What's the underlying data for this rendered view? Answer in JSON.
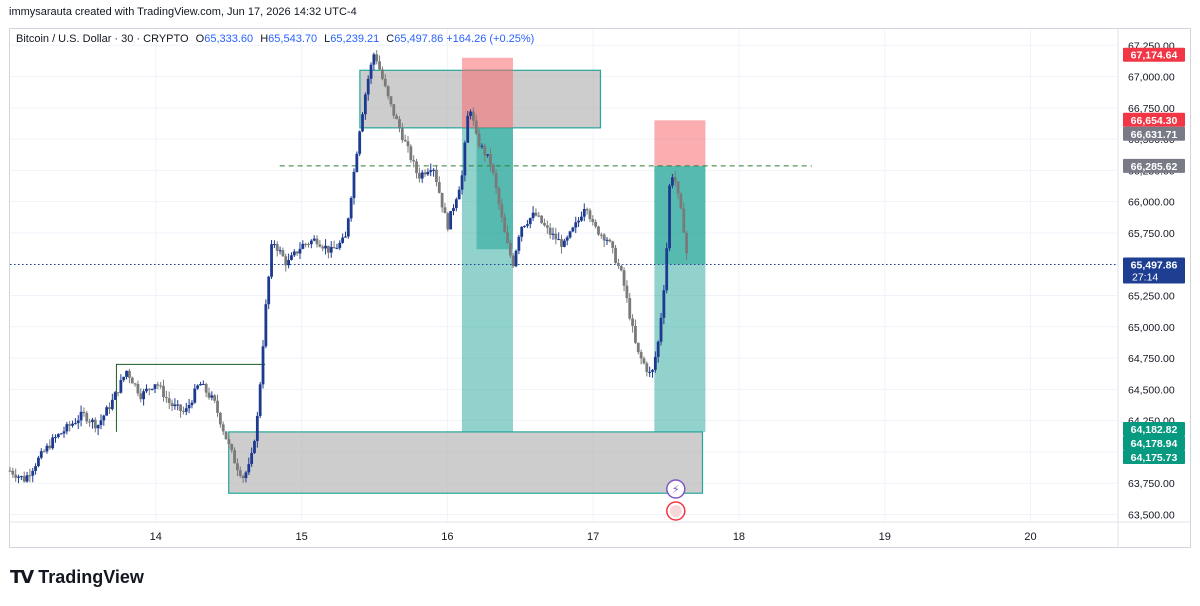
{
  "caption": "immysarauta created with TradingView.com, Jun 17, 2026 14:32 UTC-4",
  "symbol": {
    "name": "Bitcoin / U.S. Dollar · 30 · CRYPTO",
    "o_label": "O",
    "o": "65,333.60",
    "h_label": "H",
    "h": "65,543.70",
    "l_label": "L",
    "l": "65,239.21",
    "c_label": "C",
    "c": "65,497.86",
    "change": "+164.26 (+0.25%)"
  },
  "brand": "TradingView",
  "colors": {
    "candle": "#1c3a8f",
    "grey_zone": "#b2b2b2",
    "teal_border": "#26a69a",
    "green_zone": "#26a69a",
    "red_zone": "#f8696f",
    "current_price": "#1e3f91",
    "red_label": "#f23645",
    "grey_label": "#787b86",
    "green_label": "#089981"
  },
  "chart_data": {
    "type": "candlestick",
    "y_ticks": [
      "67,250.00",
      "67,000.00",
      "66,750.00",
      "66,500.00",
      "66,250.00",
      "66,000.00",
      "65,750.00",
      "65,500.00",
      "65,250.00",
      "65,000.00",
      "64,750.00",
      "64,500.00",
      "64,250.00",
      "64,000.00",
      "63,750.00",
      "63,500.00"
    ],
    "y_tick_values": [
      67250,
      67000,
      66750,
      66500,
      66250,
      66000,
      65750,
      65500,
      65250,
      65000,
      64750,
      64500,
      64250,
      64000,
      63750,
      63500
    ],
    "ylim": [
      63440,
      67380
    ],
    "x_ticks": [
      "14",
      "15",
      "16",
      "17",
      "18",
      "19",
      "20"
    ],
    "x_tick_values": [
      14,
      15,
      16,
      17,
      18,
      19,
      20
    ],
    "xlim": [
      13.0,
      20.6
    ],
    "candle_path": [
      [
        13.0,
        63850
      ],
      [
        13.1,
        63780
      ],
      [
        13.2,
        63950
      ],
      [
        13.3,
        64100
      ],
      [
        13.4,
        64200
      ],
      [
        13.5,
        64300
      ],
      [
        13.6,
        64210
      ],
      [
        13.7,
        64400
      ],
      [
        13.8,
        64650
      ],
      [
        13.9,
        64450
      ],
      [
        14.0,
        64560
      ],
      [
        14.1,
        64380
      ],
      [
        14.2,
        64310
      ],
      [
        14.3,
        64550
      ],
      [
        14.4,
        64400
      ],
      [
        14.5,
        64050
      ],
      [
        14.55,
        63900
      ],
      [
        14.6,
        63800
      ],
      [
        14.65,
        63900
      ],
      [
        14.7,
        64300
      ],
      [
        14.75,
        65100
      ],
      [
        14.8,
        65700
      ],
      [
        14.9,
        65500
      ],
      [
        15.0,
        65650
      ],
      [
        15.1,
        65700
      ],
      [
        15.2,
        65600
      ],
      [
        15.3,
        65700
      ],
      [
        15.4,
        66600
      ],
      [
        15.45,
        66950
      ],
      [
        15.5,
        67200
      ],
      [
        15.6,
        66800
      ],
      [
        15.7,
        66500
      ],
      [
        15.8,
        66200
      ],
      [
        15.9,
        66300
      ],
      [
        16.0,
        65800
      ],
      [
        16.1,
        66200
      ],
      [
        16.15,
        66800
      ],
      [
        16.2,
        66500
      ],
      [
        16.3,
        66300
      ],
      [
        16.4,
        65700
      ],
      [
        16.45,
        65500
      ],
      [
        16.5,
        65800
      ],
      [
        16.6,
        65900
      ],
      [
        16.7,
        65750
      ],
      [
        16.8,
        65650
      ],
      [
        16.9,
        65850
      ],
      [
        16.95,
        66000
      ],
      [
        17.0,
        65800
      ],
      [
        17.1,
        65700
      ],
      [
        17.2,
        65400
      ],
      [
        17.3,
        64800
      ],
      [
        17.4,
        64600
      ],
      [
        17.45,
        64900
      ],
      [
        17.5,
        65500
      ],
      [
        17.52,
        66100
      ],
      [
        17.55,
        66250
      ],
      [
        17.58,
        66050
      ],
      [
        17.62,
        65800
      ],
      [
        17.65,
        65500
      ]
    ],
    "horizontal_lines": [
      {
        "label": "dashed-resistance",
        "value": 66285.62,
        "style": "dashed",
        "color": "#2e7d32",
        "x_from": 14.85,
        "x_to": 18.5
      },
      {
        "label": "current-price",
        "value": 65497.86,
        "style": "dotted",
        "color": "#1e3f91",
        "x_from": 13.0,
        "x_to": 20.6
      }
    ],
    "zones": [
      {
        "name": "supply-zone",
        "kind": "grey",
        "x": [
          15.4,
          17.05
        ],
        "y": [
          66590,
          67050
        ]
      },
      {
        "name": "demand-zone",
        "kind": "grey",
        "x": [
          14.5,
          17.75
        ],
        "y": [
          63670,
          64160
        ]
      },
      {
        "name": "range-box",
        "kind": "outline",
        "x": [
          13.73,
          14.75
        ],
        "y": [
          64160,
          64700
        ]
      },
      {
        "name": "position-1-green",
        "kind": "green",
        "x": [
          16.1,
          16.45
        ],
        "y": [
          64160,
          66590
        ]
      },
      {
        "name": "position-1-red",
        "kind": "red",
        "x": [
          16.1,
          16.45
        ],
        "y": [
          66590,
          67150
        ]
      },
      {
        "name": "position-1-inner",
        "kind": "greenDark",
        "x": [
          16.2,
          16.45
        ],
        "y": [
          65620,
          66590
        ]
      },
      {
        "name": "position-2-green",
        "kind": "green",
        "x": [
          17.42,
          17.77
        ],
        "y": [
          64160,
          66285
        ]
      },
      {
        "name": "position-2-red",
        "kind": "red",
        "x": [
          17.42,
          17.77
        ],
        "y": [
          66285,
          66650
        ]
      },
      {
        "name": "position-2-inner",
        "kind": "greenDark",
        "x": [
          17.42,
          17.77
        ],
        "y": [
          65500,
          66285
        ]
      }
    ],
    "price_labels": [
      {
        "text": "67,174.64",
        "value": 67174.64,
        "kind": "red"
      },
      {
        "text": "66,654.30",
        "value": 66654.3,
        "kind": "red"
      },
      {
        "text": "66,631.71",
        "value": 66631.71,
        "kind": "grey"
      },
      {
        "text": "66,285.62",
        "value": 66285.62,
        "kind": "grey"
      },
      {
        "text": "65,497.86",
        "value": 65497.86,
        "kind": "blue",
        "sub": "27:14"
      },
      {
        "text": "64,182.82",
        "value": 64182.82,
        "kind": "green"
      },
      {
        "text": "64,178.94",
        "value": 64178.94,
        "kind": "green"
      },
      {
        "text": "64,175.73",
        "value": 64175.73,
        "kind": "green"
      }
    ]
  }
}
